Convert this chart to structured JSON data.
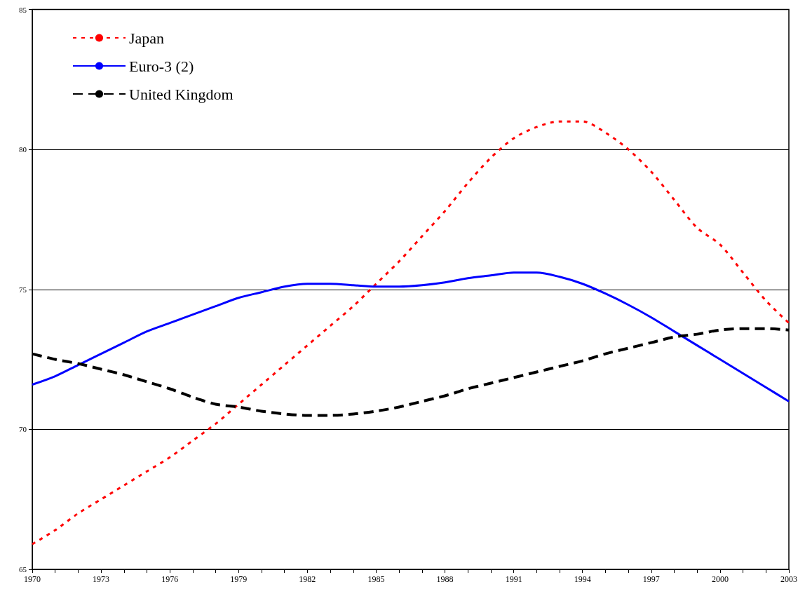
{
  "chart_data": {
    "type": "line",
    "categories": [
      "1970",
      null,
      null,
      "1973",
      null,
      null,
      "1976",
      null,
      null,
      "1979",
      null,
      null,
      "1982",
      null,
      null,
      "1985",
      null,
      null,
      "1988",
      null,
      null,
      "1991",
      null,
      null,
      "1994",
      null,
      null,
      "1997",
      null,
      null,
      "2000",
      null,
      null,
      "2003"
    ],
    "ylim": [
      65,
      85
    ],
    "yticks": [
      65,
      70,
      75,
      80,
      85
    ],
    "grid": "y",
    "legend": "top left",
    "marker": "none",
    "series": [
      {
        "name": "Japan",
        "color": "#ff0000",
        "line_style": "dotted",
        "values": [
          65.9,
          66.4,
          67.0,
          67.5,
          68.0,
          68.5,
          69.0,
          69.6,
          70.2,
          70.9,
          71.6,
          72.3,
          73.0,
          73.7,
          74.4,
          75.2,
          76.0,
          76.9,
          77.8,
          78.8,
          79.7,
          80.4,
          80.8,
          81.0,
          81.0,
          80.6,
          80.0,
          79.2,
          78.2,
          77.2,
          76.6,
          75.6,
          74.6,
          73.8
        ]
      },
      {
        "name": "Euro-3 (2)",
        "color": "#0000ff",
        "line_style": "solid",
        "values": [
          71.6,
          71.9,
          72.3,
          72.7,
          73.1,
          73.5,
          73.8,
          74.1,
          74.4,
          74.7,
          74.9,
          75.1,
          75.2,
          75.2,
          75.15,
          75.1,
          75.1,
          75.15,
          75.25,
          75.4,
          75.5,
          75.6,
          75.6,
          75.45,
          75.2,
          74.85,
          74.45,
          74.0,
          73.5,
          73.0,
          72.5,
          72.0,
          71.5,
          71.0
        ]
      },
      {
        "name": "United Kingdom",
        "color": "#000000",
        "line_style": "dashed",
        "values": [
          72.7,
          72.5,
          72.35,
          72.15,
          71.95,
          71.7,
          71.45,
          71.15,
          70.9,
          70.8,
          70.65,
          70.55,
          70.5,
          70.5,
          70.55,
          70.65,
          70.8,
          71.0,
          71.2,
          71.45,
          71.65,
          71.85,
          72.05,
          72.25,
          72.45,
          72.7,
          72.9,
          73.1,
          73.3,
          73.4,
          73.55,
          73.6,
          73.6,
          73.55
        ]
      }
    ]
  }
}
